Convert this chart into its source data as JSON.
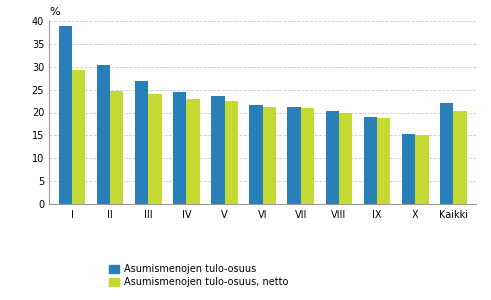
{
  "categories": [
    "I",
    "II",
    "III",
    "IV",
    "V",
    "VI",
    "VII",
    "VIII",
    "IX",
    "X",
    "Kaikki"
  ],
  "brutto": [
    39.0,
    30.3,
    26.8,
    24.4,
    23.6,
    21.7,
    21.2,
    20.4,
    19.0,
    15.2,
    22.0
  ],
  "netto": [
    29.3,
    24.6,
    24.1,
    23.0,
    22.6,
    21.1,
    21.0,
    20.0,
    18.7,
    15.0,
    20.4
  ],
  "color_brutto": "#2980B9",
  "color_netto": "#C5D933",
  "ylabel": "%",
  "ylim": [
    0,
    40
  ],
  "yticks": [
    0,
    5,
    10,
    15,
    20,
    25,
    30,
    35,
    40
  ],
  "legend_brutto": "Asumismenojen tulo-osuus",
  "legend_netto": "Asumismenojen tulo-osuus, netto",
  "bar_width": 0.35,
  "background_color": "#ffffff",
  "grid_color": "#cccccc"
}
